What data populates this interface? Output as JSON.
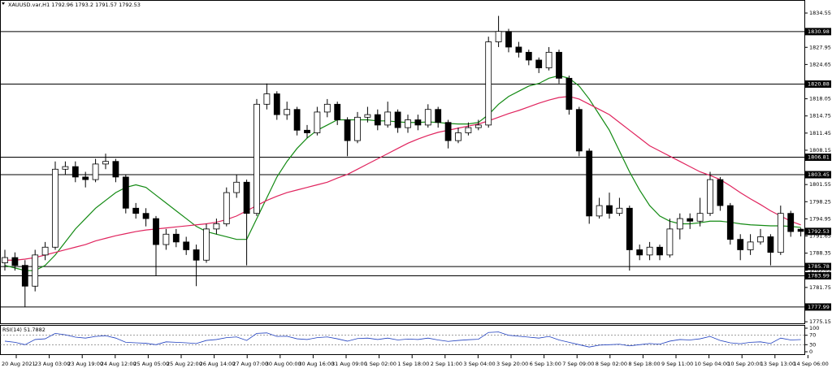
{
  "chart_data": [
    {
      "type": "candlestick",
      "symbol": "XAUUSD.var,H1",
      "open": [
        1786.5,
        1787.5,
        1786,
        1782,
        1788,
        1789.5,
        1804.5,
        1805,
        1803,
        1802.5,
        1805.5,
        1806,
        1803,
        1797,
        1796,
        1795,
        1790,
        1792,
        1790.5,
        1789,
        1787,
        1793,
        1794,
        1800,
        1802,
        1796,
        1817,
        1819,
        1815,
        1816,
        1812,
        1811.5,
        1815.5,
        1817,
        1814,
        1810,
        1814.5,
        1815,
        1813,
        1815.5,
        1812.5,
        1814,
        1813,
        1816,
        1813.5,
        1810,
        1811.5,
        1812.5,
        1813,
        1829,
        1831,
        1828,
        1827,
        1825.5,
        1824,
        1827,
        1822,
        1816,
        1808,
        1795.5,
        1797.5,
        1796,
        1797,
        1789,
        1788,
        1789.5,
        1788,
        1793,
        1795,
        1794.5,
        1796,
        1802.5,
        1797.5,
        1791,
        1789,
        1790.5,
        1791.5,
        1788.5,
        1796,
        1792.96
      ],
      "high": [
        1789,
        1788.5,
        1787,
        1789,
        1790.5,
        1806,
        1806,
        1806,
        1804,
        1806.5,
        1807.5,
        1806.5,
        1803.5,
        1798,
        1797,
        1795.5,
        1793,
        1793,
        1791.5,
        1790,
        1794,
        1795,
        1801,
        1803.5,
        1802.5,
        1818,
        1821,
        1819.5,
        1817.5,
        1816.5,
        1813,
        1816.5,
        1818,
        1817.5,
        1814.5,
        1815.5,
        1816.5,
        1816,
        1817.5,
        1816,
        1815,
        1815,
        1817,
        1816.5,
        1814,
        1812.5,
        1813.5,
        1814,
        1830,
        1834,
        1831.5,
        1829,
        1827.5,
        1826,
        1828,
        1827.5,
        1822.5,
        1816.5,
        1808.5,
        1799,
        1800,
        1799,
        1797.5,
        1790,
        1790.5,
        1790,
        1795,
        1796,
        1796,
        1799,
        1804,
        1803,
        1798,
        1792,
        1792,
        1793,
        1792,
        1797.5,
        1796.5,
        1793.2
      ],
      "low": [
        1785,
        1785,
        1778,
        1781,
        1787,
        1789,
        1803.5,
        1802,
        1801,
        1802,
        1804.5,
        1802,
        1796,
        1795,
        1793.5,
        1784,
        1789,
        1789.5,
        1788,
        1782,
        1786.5,
        1792,
        1793.5,
        1799,
        1786,
        1795.5,
        1816,
        1814,
        1814,
        1811,
        1810.5,
        1811,
        1814.5,
        1813,
        1807,
        1809.5,
        1813.5,
        1812,
        1812.5,
        1811.5,
        1811.5,
        1812,
        1812.5,
        1812.5,
        1808.5,
        1809.5,
        1811,
        1812,
        1812.5,
        1828,
        1827,
        1826,
        1824.5,
        1823,
        1823.5,
        1821,
        1815,
        1807,
        1794,
        1795,
        1795,
        1795.5,
        1785,
        1787,
        1787,
        1787,
        1787.5,
        1791,
        1793,
        1793.5,
        1795.5,
        1796.5,
        1790,
        1787,
        1788,
        1790,
        1786,
        1788,
        1791.5,
        1791.57
      ],
      "close": [
        1787.5,
        1786,
        1782,
        1788,
        1789.5,
        1804.5,
        1805,
        1803,
        1802.5,
        1805.5,
        1806,
        1803,
        1797,
        1796,
        1795,
        1790,
        1792,
        1790.5,
        1789,
        1787,
        1793,
        1794,
        1800,
        1802,
        1796,
        1817,
        1819,
        1815,
        1816,
        1812,
        1811.5,
        1815.5,
        1817,
        1814,
        1810,
        1814.5,
        1815,
        1813,
        1815.5,
        1812.5,
        1814,
        1813,
        1816,
        1813.5,
        1810,
        1811.5,
        1812.5,
        1813,
        1829,
        1831,
        1828,
        1827,
        1825.5,
        1824,
        1827,
        1822,
        1816,
        1808,
        1795.5,
        1797.5,
        1796,
        1797,
        1789,
        1788,
        1789.5,
        1788,
        1793,
        1795,
        1794.5,
        1796,
        1802.5,
        1797.5,
        1791,
        1789,
        1790.5,
        1791.5,
        1788.5,
        1796,
        1792.5,
        1792.53
      ],
      "series": [
        {
          "color": "#138a13",
          "values": [
            1786,
            1785.5,
            1785,
            1785,
            1786,
            1788,
            1790.5,
            1793,
            1795,
            1797,
            1798.5,
            1800,
            1801,
            1801.5,
            1801,
            1799.5,
            1798,
            1796.5,
            1795,
            1793.5,
            1792.5,
            1792,
            1791.5,
            1791,
            1791,
            1795,
            1799,
            1803,
            1806,
            1808.5,
            1810.5,
            1812,
            1813,
            1814,
            1814,
            1814,
            1814,
            1813.8,
            1813.8,
            1813.6,
            1813.5,
            1813.5,
            1813.6,
            1813.5,
            1813.3,
            1813.2,
            1813.2,
            1813.5,
            1815,
            1817,
            1818.5,
            1819.5,
            1820.5,
            1821,
            1822,
            1822.5,
            1822,
            1820.5,
            1818,
            1815,
            1812,
            1808,
            1804,
            1800.5,
            1797.5,
            1795.5,
            1794.5,
            1794,
            1794,
            1794.2,
            1794.5,
            1794.5,
            1794.3,
            1794,
            1793.8,
            1793.7,
            1793.6,
            1793.6,
            1793.5,
            1793.3
          ]
        },
        {
          "color": "#e0245e",
          "values": [
            1787,
            1787,
            1787.2,
            1787.5,
            1788,
            1788.5,
            1789,
            1789.5,
            1790,
            1790.7,
            1791.2,
            1791.7,
            1792.1,
            1792.5,
            1792.8,
            1793,
            1793.2,
            1793.4,
            1793.6,
            1793.8,
            1794,
            1794.3,
            1794.8,
            1795.5,
            1796.5,
            1797.5,
            1798.5,
            1799.3,
            1800,
            1800.5,
            1801,
            1801.5,
            1802,
            1802.8,
            1803.5,
            1804.5,
            1805.5,
            1806.5,
            1807.5,
            1808.5,
            1809.5,
            1810.3,
            1811,
            1811.6,
            1812,
            1812.4,
            1812.8,
            1813.2,
            1813.8,
            1814.5,
            1815.2,
            1815.8,
            1816.5,
            1817.2,
            1817.8,
            1818.3,
            1818.5,
            1818,
            1817,
            1816,
            1815,
            1813.5,
            1812,
            1810.5,
            1809,
            1808,
            1807,
            1806,
            1805,
            1804,
            1803.3,
            1802.5,
            1801.3,
            1800,
            1798.8,
            1797.7,
            1796.5,
            1795.5,
            1794.5,
            1793.8
          ]
        }
      ],
      "hlines": [
        1830.98,
        1820.88,
        1806.81,
        1803.45,
        1785.78,
        1783.99,
        1777.99
      ],
      "ylim": [
        1774.85,
        1836.9
      ],
      "yticks": [
        1834.55,
        1827.95,
        1824.65,
        1818.05,
        1814.75,
        1811.45,
        1808.15,
        1801.55,
        1798.25,
        1794.95,
        1791.65,
        1788.35,
        1785.05,
        1781.75,
        1775.15
      ],
      "xtick_labels": [
        "20 Aug 2021",
        "23 Aug 03:00",
        "23 Aug 19:00",
        "24 Aug 12:00",
        "25 Aug 05:00",
        "25 Aug 22:00",
        "26 Aug 14:00",
        "27 Aug 07:00",
        "30 Aug 00:00",
        "30 Aug 16:00",
        "31 Aug 09:00",
        "1 Sep 02:00",
        "1 Sep 18:00",
        "2 Sep 11:00",
        "3 Sep 04:00",
        "3 Sep 20:00",
        "6 Sep 13:00",
        "7 Sep 09:00",
        "8 Sep 02:00",
        "8 Sep 18:00",
        "9 Sep 11:00",
        "10 Sep 04:00",
        "10 Sep 20:00",
        "13 Sep 13:00",
        "14 Sep 06:00"
      ]
    },
    {
      "type": "line",
      "name": "RSI(14)",
      "color": "#1f3fbf",
      "values": [
        45,
        40,
        30,
        52,
        55,
        78,
        72,
        62,
        58,
        65,
        68,
        58,
        40,
        38,
        36,
        30,
        42,
        40,
        38,
        35,
        48,
        52,
        60,
        63,
        48,
        78,
        80,
        65,
        66,
        55,
        52,
        60,
        63,
        55,
        45,
        56,
        58,
        52,
        58,
        50,
        54,
        52,
        58,
        50,
        44,
        48,
        51,
        53,
        82,
        84,
        70,
        66,
        62,
        58,
        65,
        50,
        40,
        30,
        20,
        28,
        30,
        32,
        25,
        30,
        35,
        32,
        45,
        52,
        50,
        55,
        65,
        48,
        38,
        34,
        40,
        42,
        35,
        58,
        50,
        51.7882
      ],
      "levels": [
        70,
        30
      ],
      "ylim": [
        0,
        100
      ],
      "yticks": [
        100,
        70,
        30,
        0
      ]
    }
  ]
}
